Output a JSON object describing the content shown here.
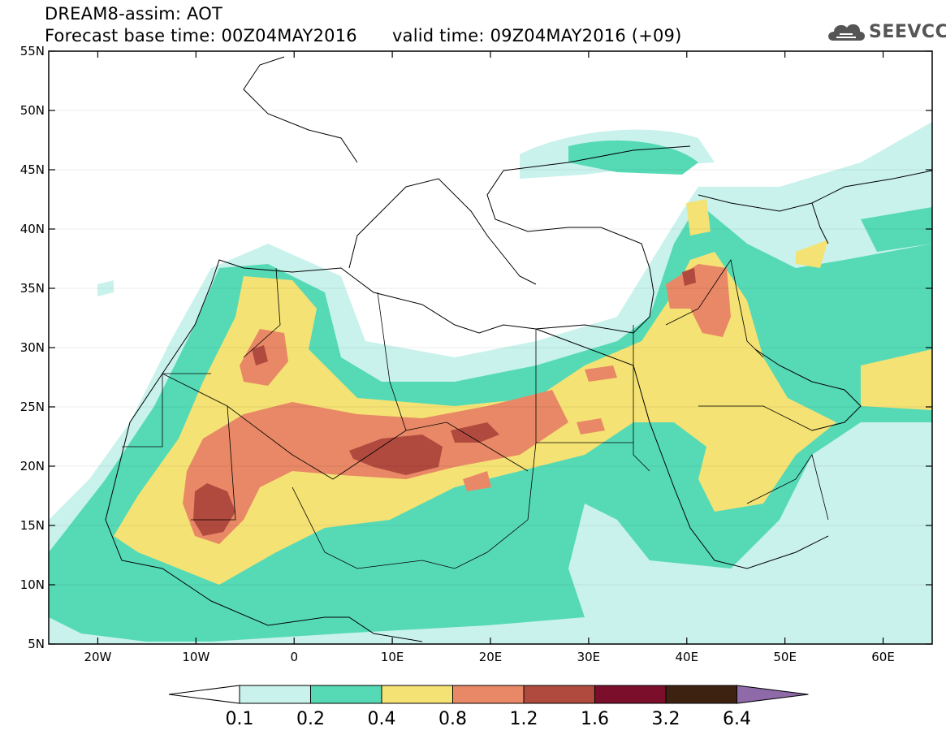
{
  "header": {
    "line1": "DREAM8-assim: AOT",
    "base_time": "Forecast base time: 00Z04MAY2016",
    "valid_time": "valid time: 09Z04MAY2016 (+09)"
  },
  "logo": {
    "text": "SEEVCCC",
    "icon": "cloud-logo-icon"
  },
  "map": {
    "lon_range": [
      -25,
      65
    ],
    "lat_range": [
      5,
      55
    ],
    "lat_labels": [
      "55N",
      "50N",
      "45N",
      "40N",
      "35N",
      "30N",
      "25N",
      "20N",
      "15N",
      "10N",
      "5N"
    ],
    "lon_labels": [
      "20W",
      "10W",
      "0",
      "10E",
      "20E",
      "30E",
      "40E",
      "50E",
      "60E"
    ]
  },
  "colorbar": {
    "labels": [
      "0.1",
      "0.2",
      "0.4",
      "0.8",
      "1.2",
      "1.6",
      "3.2",
      "6.4"
    ],
    "colors": [
      "#c9f2ec",
      "#56dab6",
      "#f5e274",
      "#e88866",
      "#b04a3e",
      "#7a0e2b",
      "#3d2212",
      "#8e6aa8"
    ],
    "under_color": "#ffffff"
  }
}
